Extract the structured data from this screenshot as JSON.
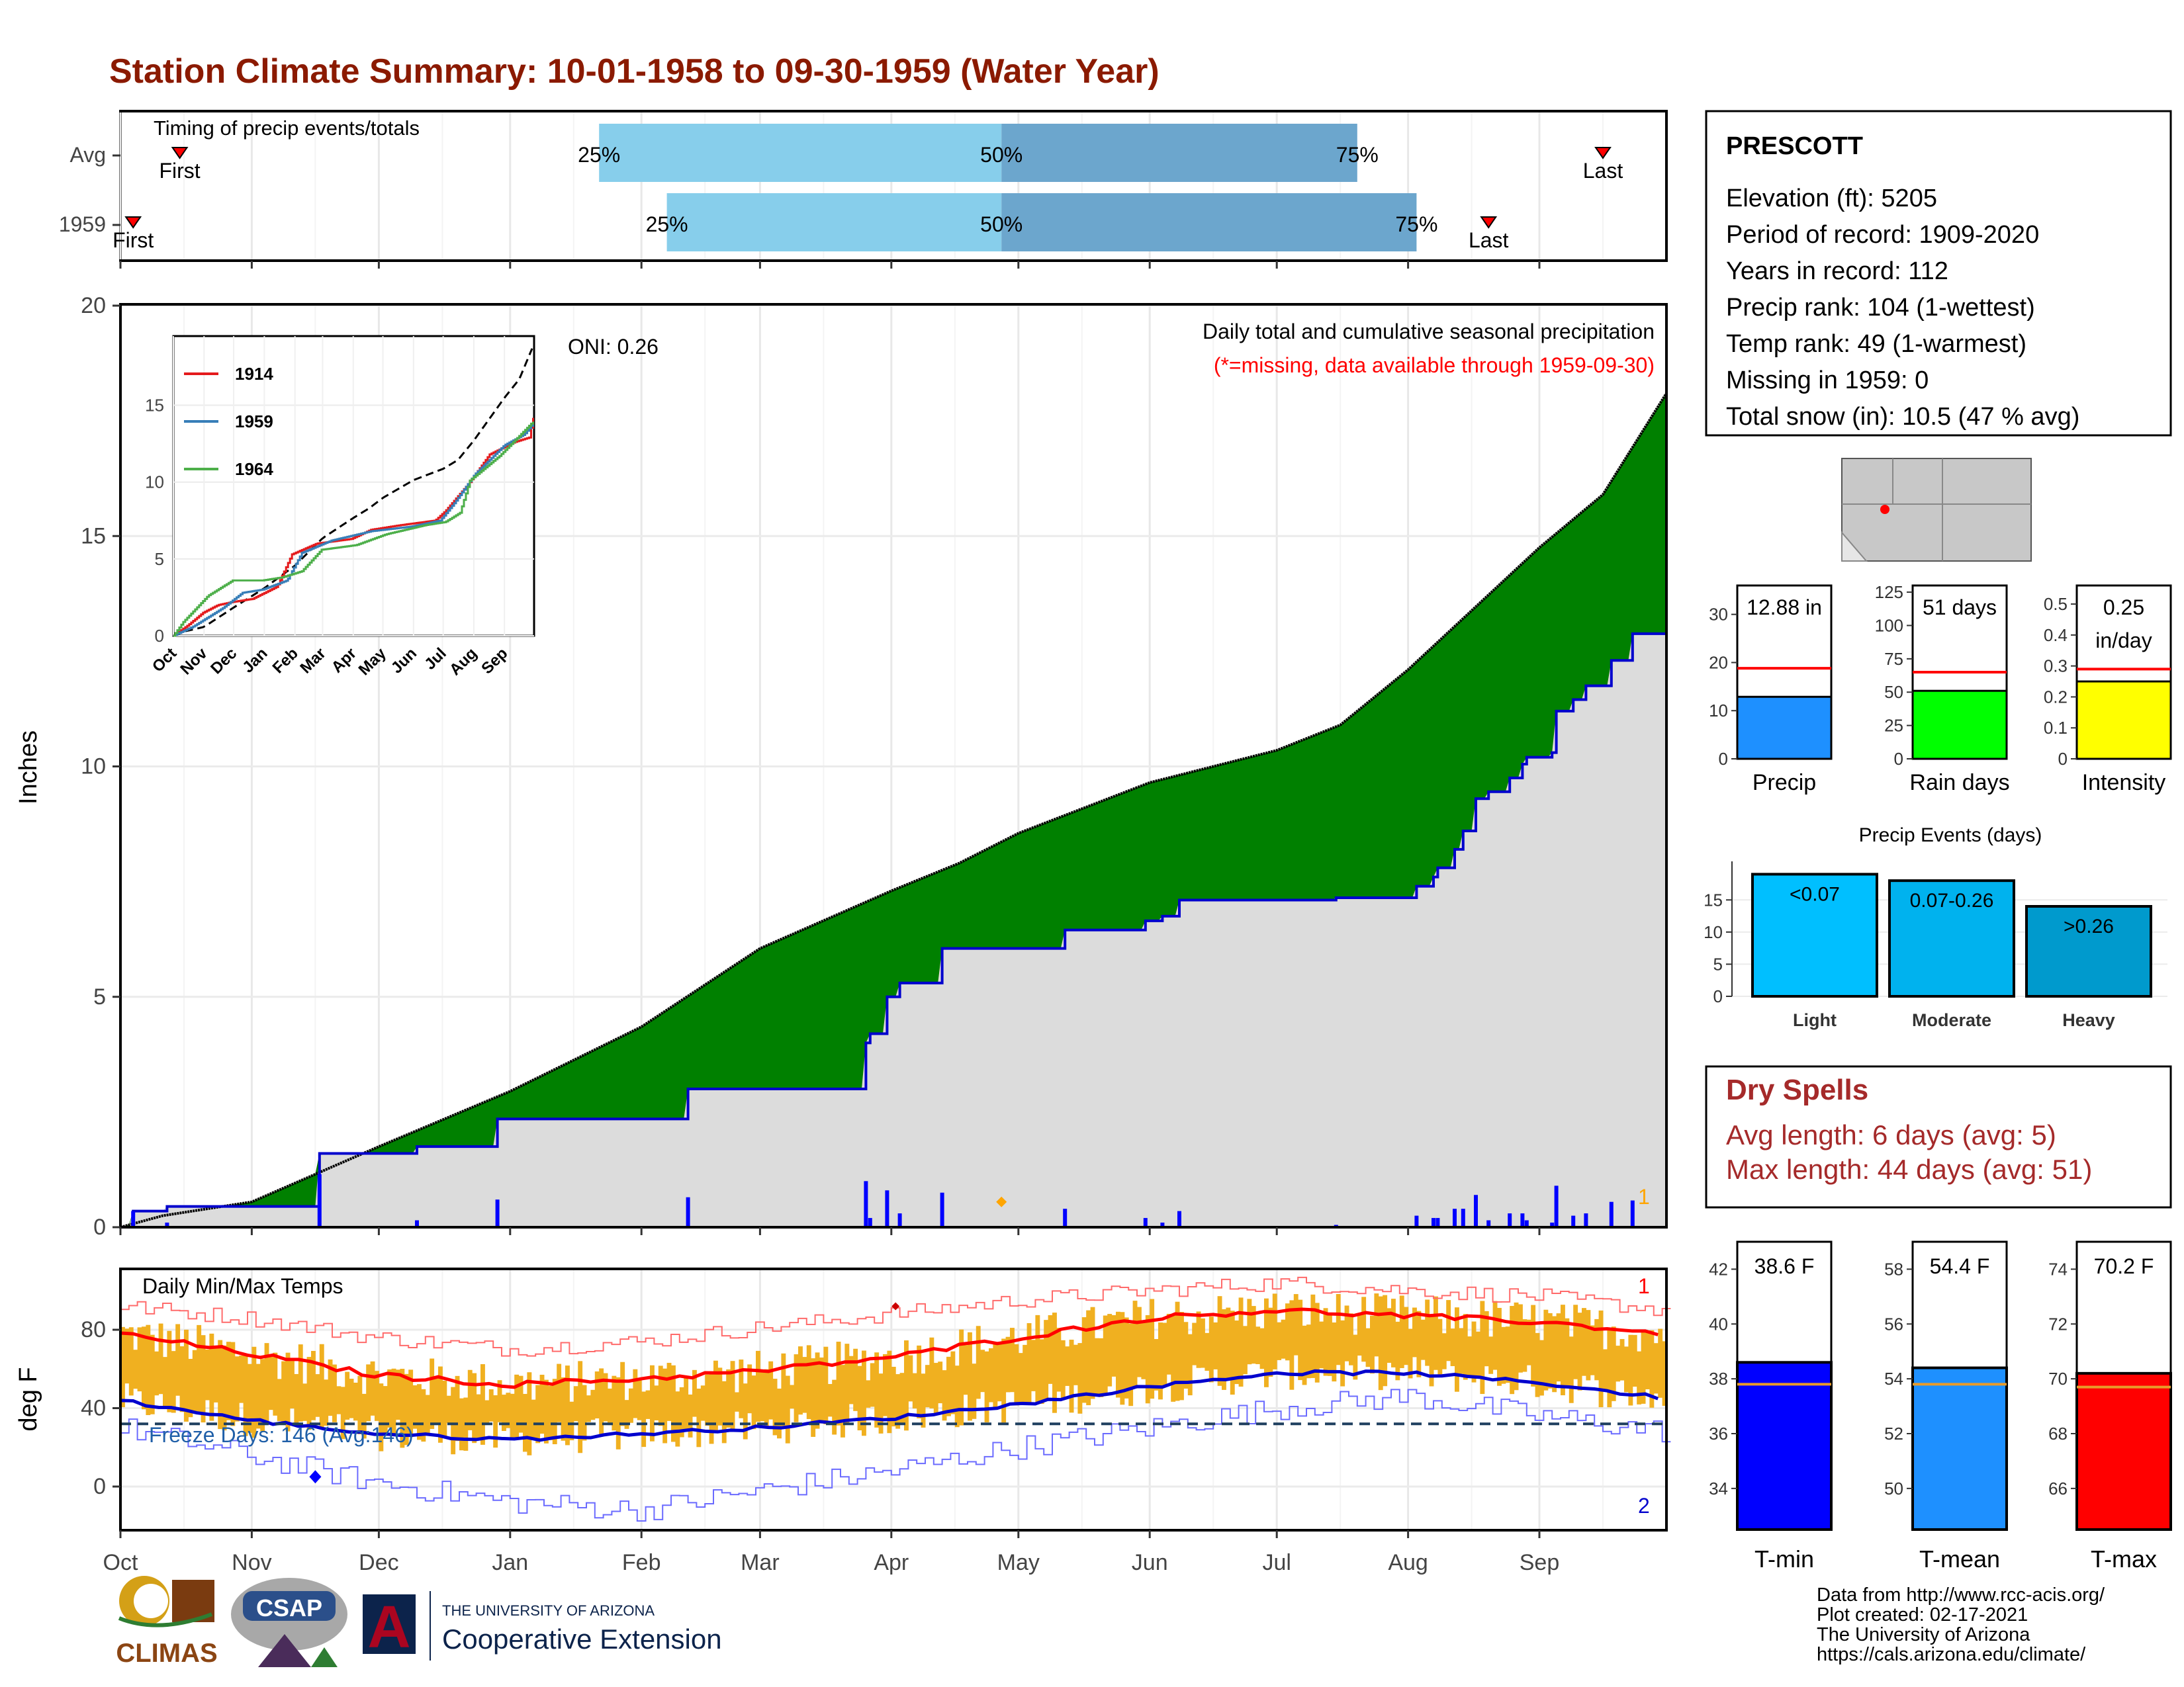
{
  "header": {
    "title": "Station Climate Summary: 10-01-1958 to 09-30-1959 (Water Year)"
  },
  "colors": {
    "title": "#8b1a00",
    "precip_fill": "#8b5a00",
    "avg_fill": "#dcdcdc",
    "deficit_fill": "#008000",
    "tmax": "#ff0000",
    "tmin": "#0000cd",
    "bar_temp": "#f0b020",
    "light_blue": "#87ceeb",
    "mid_blue": "#6ca6cd"
  },
  "timing": {
    "label": "Timing of precip events/totals",
    "rows": [
      {
        "name": "Avg",
        "first_date": "1958-10-15",
        "q25": "1959-01-22",
        "q50": "1959-04-27",
        "q75": "1959-07-20",
        "last_date": "1959-09-16"
      },
      {
        "name": "1959",
        "first_date": "1958-10-04",
        "q25": "1959-02-07",
        "q50": "1959-04-27",
        "q75": "1959-08-03",
        "last_date": "1959-08-20"
      }
    ],
    "q25_label": "25%",
    "q50_label": "50%",
    "q75_label": "75%",
    "first_label": "First",
    "last_label": "Last"
  },
  "precip_chart": {
    "ylabel": "Inches",
    "y_ticks": [
      "0",
      "5",
      "10",
      "15",
      "20"
    ],
    "note1": "Daily total and cumulative seasonal precipitation",
    "note2": "(*=missing, data available through 1959-09-30)",
    "oni": "ONI: 0.26",
    "corner_mark": "1",
    "ylim": [
      0,
      20
    ]
  },
  "inset": {
    "y_ticks": [
      "0",
      "5",
      "10",
      "15"
    ],
    "x_ticks": [
      "Oct",
      "Nov",
      "Dec",
      "Jan",
      "Feb",
      "Mar",
      "Apr",
      "May",
      "Jun",
      "Jul",
      "Aug",
      "Sep"
    ],
    "legend": [
      "1914",
      "1959",
      "1964"
    ],
    "colors": [
      "#e41a1c",
      "#377eb8",
      "#4daf4a"
    ]
  },
  "temp_chart": {
    "ylabel": "deg F",
    "title": "Daily Min/Max Temps",
    "freeze": "Freeze Days: 146 (Avg:146)",
    "y_ticks": [
      "0",
      "40",
      "80"
    ],
    "mark_top": "1",
    "mark_bottom": "2",
    "freeze_line": 32
  },
  "x_months": [
    "Oct",
    "Nov",
    "Dec",
    "Jan",
    "Feb",
    "Mar",
    "Apr",
    "May",
    "Jun",
    "Jul",
    "Aug",
    "Sep"
  ],
  "station": {
    "name": "PRESCOTT",
    "lines": [
      "Elevation (ft): 5205",
      "Period of record: 1909-2020",
      "Years in record: 112",
      "Precip rank: 104 (1-wettest)",
      "Temp rank: 49 (1-warmest)",
      "Missing in 1959: 0",
      "Total snow (in): 10.5 (47 % avg)"
    ]
  },
  "mini_bars": [
    {
      "label": "Precip",
      "value_text": "12.88 in",
      "value_text2": "",
      "value": 12.88,
      "avg": 18.8,
      "ymax": 36,
      "ticks": [
        0,
        10,
        20,
        30
      ],
      "fill": "#1e90ff"
    },
    {
      "label": "Rain days",
      "value_text": "51 days",
      "value_text2": "",
      "value": 51,
      "avg": 65,
      "ymax": 130,
      "ticks": [
        0,
        25,
        50,
        75,
        100,
        125
      ],
      "fill": "#00ff00"
    },
    {
      "label": "Intensity",
      "value_text": "0.25",
      "value_text2": "in/day",
      "value": 0.25,
      "avg": 0.29,
      "ymax": 0.56,
      "ticks": [
        0.0,
        0.1,
        0.2,
        0.3,
        0.4,
        0.5
      ],
      "fill": "#ffff00"
    }
  ],
  "events": {
    "title": "Precip Events (days)",
    "categories": [
      "Light",
      "Moderate",
      "Heavy"
    ],
    "labels": [
      "<0.07",
      "0.07-0.26",
      ">0.26"
    ],
    "values": [
      19,
      18,
      14
    ],
    "y_ticks": [
      0,
      5,
      10,
      15
    ],
    "colors": [
      "#00bfff",
      "#00b2ee",
      "#009acd"
    ]
  },
  "dry": {
    "title": "Dry Spells",
    "line1": "Avg length: 6 days (avg: 5)",
    "line2": "Max length: 44 days (avg: 51)"
  },
  "temp_bars": [
    {
      "label": "T-min",
      "value_text": "38.6 F",
      "value": 38.6,
      "avg": 37.8,
      "ymin": 32.5,
      "ymax": 43,
      "ticks": [
        34,
        36,
        38,
        40,
        42
      ],
      "fill": "#0000ff"
    },
    {
      "label": "T-mean",
      "value_text": "54.4 F",
      "value": 54.4,
      "avg": 53.8,
      "ymin": 48.5,
      "ymax": 59,
      "ticks": [
        50,
        52,
        54,
        56,
        58
      ],
      "fill": "#1e90ff"
    },
    {
      "label": "T-max",
      "value_text": "70.2 F",
      "value": 70.2,
      "avg": 69.7,
      "ymin": 64.5,
      "ymax": 75,
      "ticks": [
        66,
        68,
        70,
        72,
        74
      ],
      "fill": "#ff0000"
    }
  ],
  "footer": {
    "lines": [
      "Data from http://www.rcc-acis.org/",
      "Plot created: 02-17-2021",
      "The University of Arizona",
      "https://cals.arizona.edu/climate/"
    ],
    "logo_climas": "CLIMAS",
    "logo_csap": "CSAP",
    "logo_ua_small": "THE UNIVERSITY OF ARIZONA",
    "logo_ua_big": "Cooperative Extension"
  }
}
